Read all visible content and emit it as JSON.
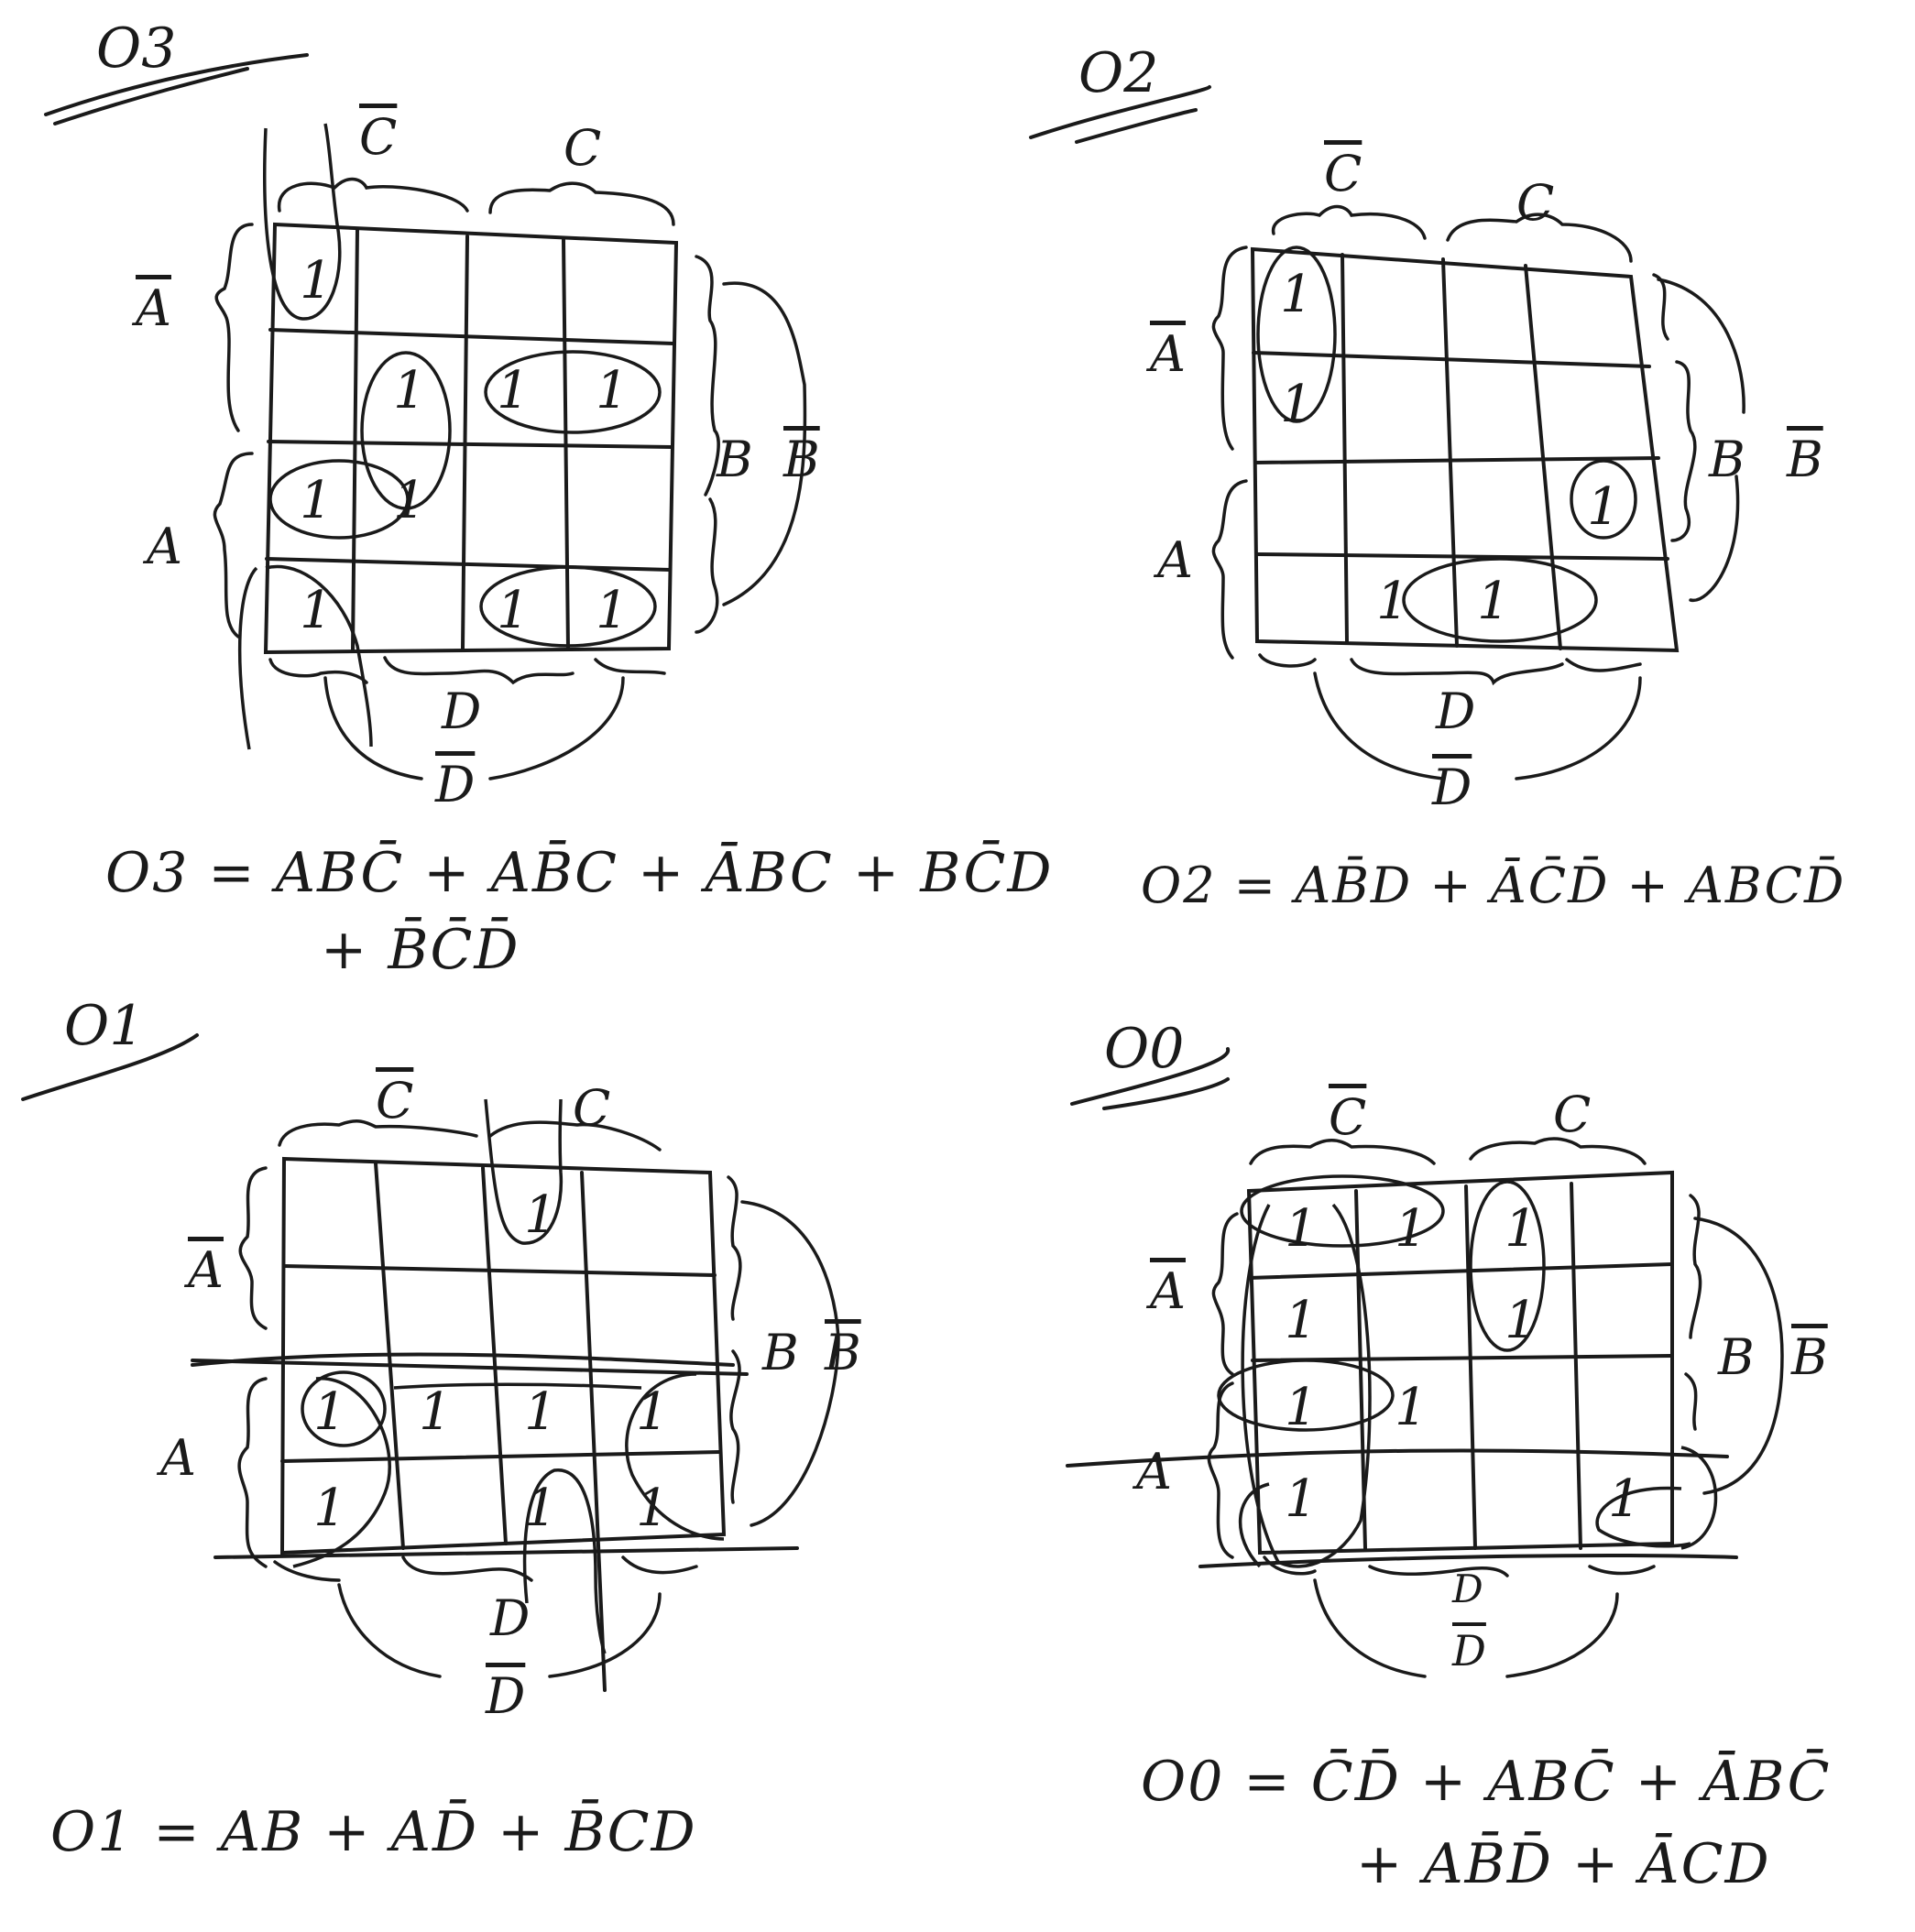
{
  "maps": [
    {
      "id": "O3",
      "title": "O3",
      "labels": {
        "c_bar": "C",
        "c": "C",
        "a_bar": "A",
        "a": "A",
        "b": "B",
        "b_bar": "B",
        "d": "D",
        "d_bar": "D"
      },
      "grid": [
        [
          "1",
          "",
          "",
          ""
        ],
        [
          "",
          "1",
          "1",
          "1"
        ],
        [
          "1",
          "1",
          "",
          ""
        ],
        [
          "1",
          "",
          "1",
          "1"
        ]
      ],
      "equation": "O3 = ABC̄ + AB̄C + ĀBC + BC̄D",
      "equation_line2": "+ B̄C̄D̄"
    },
    {
      "id": "O2",
      "title": "O2",
      "labels": {
        "c_bar": "C",
        "c": "C",
        "a_bar": "A",
        "a": "A",
        "b": "B",
        "b_bar": "B",
        "d": "D",
        "d_bar": "D"
      },
      "grid": [
        [
          "1",
          "",
          "",
          ""
        ],
        [
          "1",
          "",
          "",
          ""
        ],
        [
          "",
          "",
          "",
          "1"
        ],
        [
          "",
          "1",
          "1",
          ""
        ]
      ],
      "equation": "O2 = AB̄D + ĀC̄D̄ + ABCD̄",
      "equation_line2": ""
    },
    {
      "id": "O1",
      "title": "O1",
      "labels": {
        "c_bar": "C",
        "c": "C",
        "a_bar": "A",
        "a": "A",
        "b": "B",
        "b_bar": "B",
        "d": "D",
        "d_bar": "D"
      },
      "grid": [
        [
          "",
          "",
          "1",
          ""
        ],
        [
          "",
          "",
          "",
          ""
        ],
        [
          "1",
          "1",
          "1",
          "1"
        ],
        [
          "1",
          "",
          "1",
          "1"
        ]
      ],
      "equation": "O1 = AB + AD̄ + B̄CD",
      "equation_line2": ""
    },
    {
      "id": "O0",
      "title": "O0",
      "labels": {
        "c_bar": "C",
        "c": "C",
        "a_bar": "A",
        "a": "A",
        "b": "B",
        "b_bar": "B",
        "d": "D",
        "d_bar": "D"
      },
      "grid": [
        [
          "1",
          "1",
          "1",
          ""
        ],
        [
          "1",
          "",
          "1",
          ""
        ],
        [
          "1",
          "1",
          "",
          ""
        ],
        [
          "1",
          "",
          "",
          "1"
        ]
      ],
      "equation": "O0 = C̄D̄ + ABC̄ + ĀBC̄",
      "equation_line2": "+ AB̄D̄ + ĀCD"
    }
  ]
}
